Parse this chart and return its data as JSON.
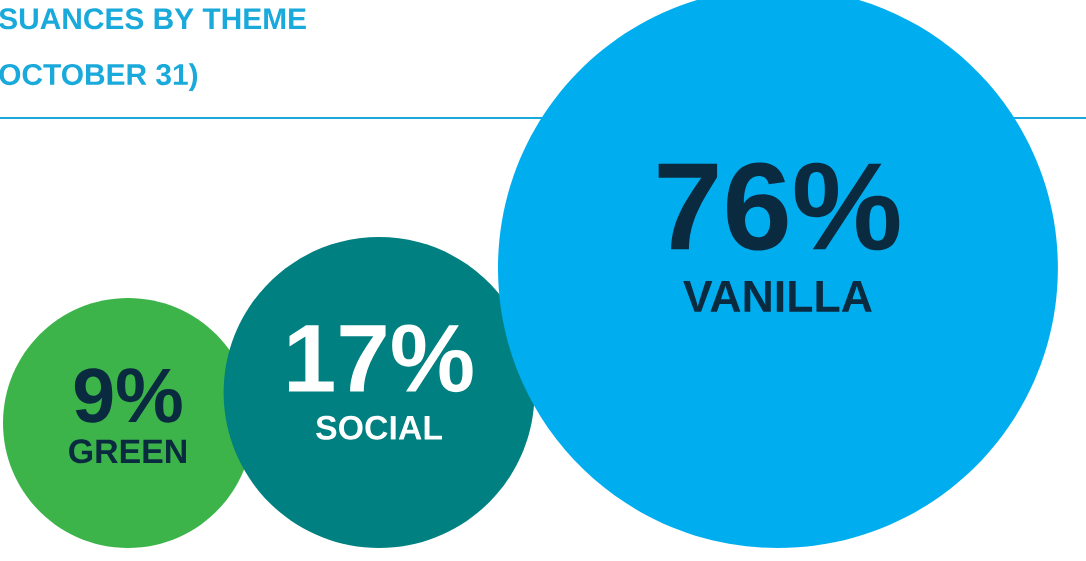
{
  "chart_data": {
    "type": "other",
    "title": "SUANCES BY THEME",
    "subtitle": "OCTOBER 31)",
    "categories": [
      "GREEN",
      "SOCIAL",
      "VANILLA"
    ],
    "values": [
      9,
      17,
      76
    ],
    "value_labels": [
      "9%",
      "17%",
      "76%"
    ],
    "colors": [
      "#3cb44a",
      "#008080",
      "#00adee"
    ]
  }
}
